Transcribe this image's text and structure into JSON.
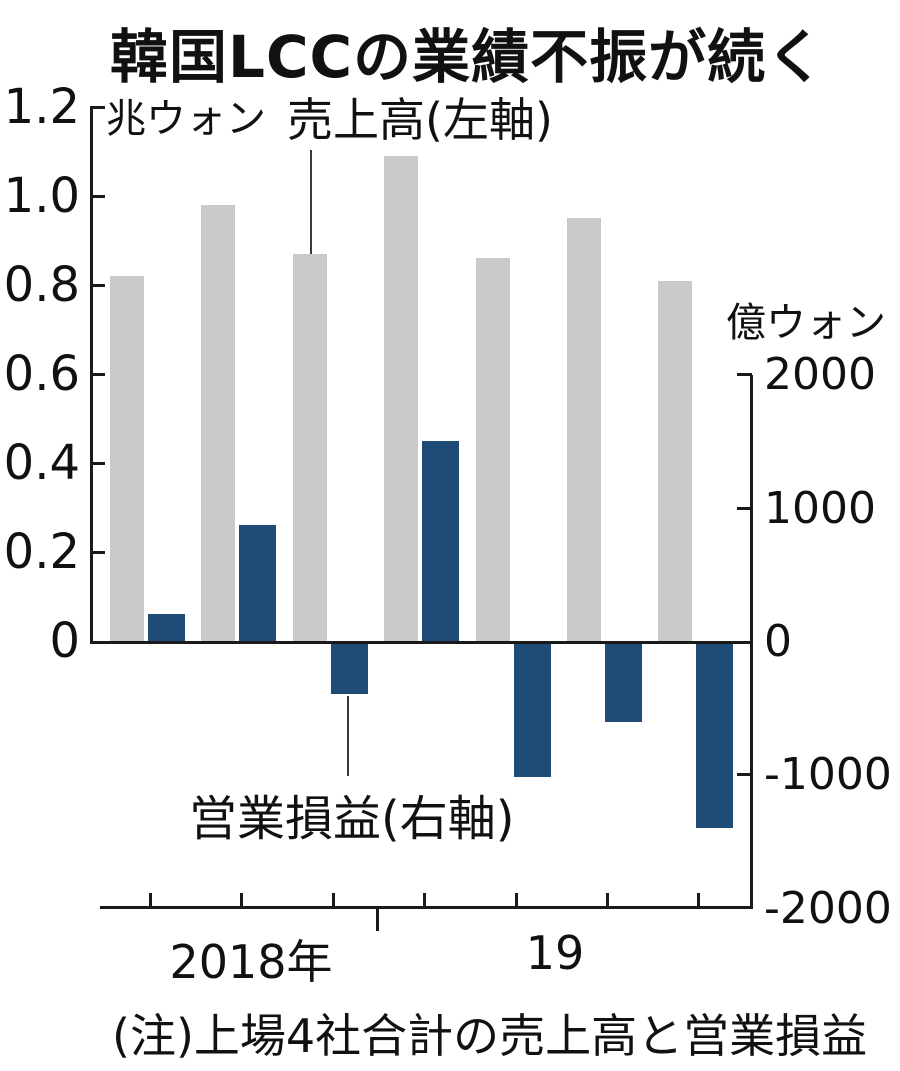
{
  "title": "韓国LCCの業績不振が続く",
  "labels": {
    "left_unit": "兆ウォン",
    "right_unit": "億ウォン",
    "revenue_series": "売上高(左軸)",
    "profit_series": "営業損益(右軸)",
    "note": "(注)上場4社合計の売上高と営業損益",
    "year_2018": "2018年",
    "year_19": "19"
  },
  "colors": {
    "revenue_bar": "#c9c9c9",
    "profit_bar": "#1e4c77",
    "axis": "#1a1a1a"
  },
  "chart_data": {
    "type": "bar",
    "title": "韓国LCCの業績不振が続く",
    "note": "(注)上場4社合計の売上高と営業損益",
    "group_count": 7,
    "x_year_labels": [
      "2018年",
      "19"
    ],
    "year_divider_after_group": 3,
    "series": [
      {
        "name": "売上高(左軸)",
        "axis": "left",
        "unit": "兆ウォン",
        "color": "#c9c9c9",
        "values": [
          0.82,
          0.98,
          0.87,
          1.09,
          0.86,
          0.95,
          0.81
        ]
      },
      {
        "name": "営業損益(右軸)",
        "axis": "right",
        "unit": "億ウォン",
        "color": "#1e4c77",
        "values": [
          200,
          870,
          -400,
          1500,
          -1020,
          -610,
          -1400
        ]
      }
    ],
    "left_axis": {
      "unit": "兆ウォン",
      "range": [
        0,
        1.2
      ],
      "tick_labels": [
        "1.2",
        "1.0",
        "0.8",
        "0.6",
        "0.4",
        "0.2",
        "0"
      ],
      "tick_values": [
        1.2,
        1.0,
        0.8,
        0.6,
        0.4,
        0.2,
        0
      ]
    },
    "right_axis": {
      "unit": "億ウォン",
      "range": [
        -2000,
        2000
      ],
      "tick_labels": [
        "2000",
        "1000",
        "0",
        "-1000",
        "-2000"
      ],
      "tick_values": [
        2000,
        1000,
        0,
        -1000,
        -2000
      ]
    },
    "grid": false,
    "legend_position": "inline-leader-lines"
  }
}
